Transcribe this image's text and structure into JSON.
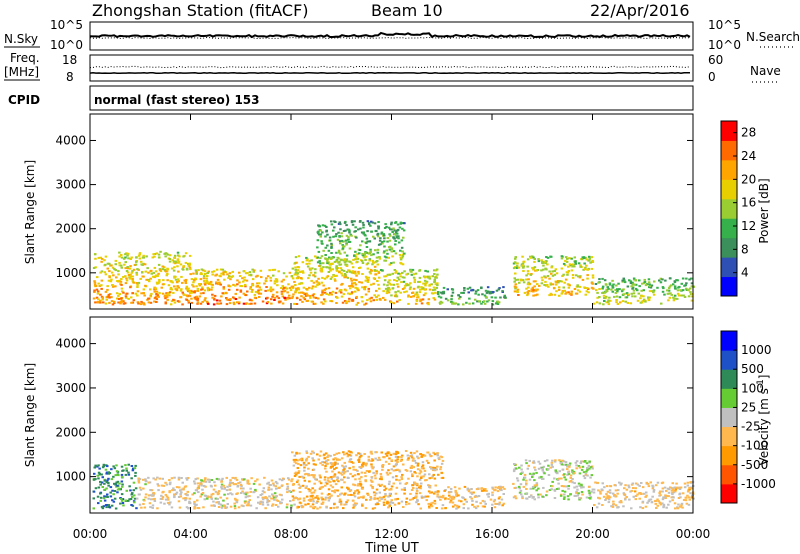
{
  "header": {
    "station": "Zhongshan Station (fitACF)",
    "beam": "Beam 10",
    "date": "22/Apr/2016"
  },
  "strips": {
    "nsky_label": "N.Sky",
    "nsearch_label": "N.Search",
    "noise_top_tick": "10^5",
    "noise_bottom_tick": "10^0",
    "freq_label_top": "Freq.",
    "freq_label_bottom": "[MHz]",
    "freq_ticks": [
      "18",
      "8"
    ],
    "nave_label": "Nave",
    "nave_ticks": [
      "60",
      "0"
    ],
    "cpid_label": "CPID",
    "cpid_text": "normal (fast stereo) 153"
  },
  "colors": {
    "frame": "#000000",
    "power_scale": [
      "#0000ff",
      "#2e4fb3",
      "#3b8f5a",
      "#36b04a",
      "#9acd32",
      "#e8d000",
      "#ffa500",
      "#ff6a00",
      "#ff0000"
    ],
    "velocity_scale": [
      "#ff0000",
      "#ff5500",
      "#ff9a00",
      "#ffb84d",
      "#c0c0c0",
      "#66cc33",
      "#2e8b57",
      "#1e50c8",
      "#0000ff"
    ]
  },
  "chart_data": [
    {
      "type": "heatmap",
      "name": "power-panel",
      "xlabel": "",
      "ylabel": "Slant Range [km]",
      "x_ticks": [
        "00:00",
        "04:00",
        "08:00",
        "12:00",
        "16:00",
        "20:00",
        "00:00"
      ],
      "xlim_hours": [
        0,
        24
      ],
      "y_ticks": [
        1000,
        2000,
        3000,
        4000
      ],
      "ylim_km": [
        180,
        4600
      ],
      "colorbar_label": "Power [dB]",
      "colorbar_ticks": [
        4,
        8,
        12,
        16,
        20,
        24,
        28
      ],
      "colorbar_range": [
        0,
        30
      ],
      "echo_regions": [
        {
          "t_start": 0.1,
          "t_end": 4.0,
          "r_min": 300,
          "r_max": 1500,
          "mean_value": 24
        },
        {
          "t_start": 4.0,
          "t_end": 8.0,
          "r_min": 300,
          "r_max": 1100,
          "mean_value": 26
        },
        {
          "t_start": 8.0,
          "t_end": 11.5,
          "r_min": 300,
          "r_max": 1400,
          "mean_value": 24
        },
        {
          "t_start": 9.0,
          "t_end": 12.5,
          "r_min": 1200,
          "r_max": 2200,
          "mean_value": 16
        },
        {
          "t_start": 11.5,
          "t_end": 13.8,
          "r_min": 300,
          "r_max": 1100,
          "mean_value": 22
        },
        {
          "t_start": 13.8,
          "t_end": 16.5,
          "r_min": 300,
          "r_max": 700,
          "mean_value": 14
        },
        {
          "t_start": 16.8,
          "t_end": 20.0,
          "r_min": 500,
          "r_max": 1400,
          "mean_value": 22
        },
        {
          "t_start": 20.0,
          "t_end": 24.0,
          "r_min": 300,
          "r_max": 900,
          "mean_value": 18
        }
      ]
    },
    {
      "type": "heatmap",
      "name": "velocity-panel",
      "xlabel": "Time UT",
      "ylabel": "Slant Range [km]",
      "x_ticks": [
        "00:00",
        "04:00",
        "08:00",
        "12:00",
        "16:00",
        "20:00",
        "00:00"
      ],
      "xlim_hours": [
        0,
        24
      ],
      "y_ticks": [
        1000,
        2000,
        3000,
        4000
      ],
      "ylim_km": [
        180,
        4600
      ],
      "colorbar_label": "Velocity [m s-1]",
      "colorbar_ticks": [
        "1000",
        "500",
        "100",
        "25",
        "-25",
        "-100",
        "-500",
        "-1000"
      ],
      "echo_regions": [
        {
          "t_start": 0.1,
          "t_end": 1.8,
          "r_min": 300,
          "r_max": 1300,
          "mean_value": 500
        },
        {
          "t_start": 1.8,
          "t_end": 8.0,
          "r_min": 300,
          "r_max": 1000,
          "mean_value": -100
        },
        {
          "t_start": 8.0,
          "t_end": 14.0,
          "r_min": 300,
          "r_max": 1600,
          "mean_value": -300
        },
        {
          "t_start": 14.0,
          "t_end": 16.5,
          "r_min": 300,
          "r_max": 800,
          "mean_value": -200
        },
        {
          "t_start": 16.8,
          "t_end": 20.0,
          "r_min": 500,
          "r_max": 1400,
          "mean_value": 50
        },
        {
          "t_start": 20.0,
          "t_end": 24.0,
          "r_min": 300,
          "r_max": 900,
          "mean_value": -150
        }
      ]
    }
  ]
}
